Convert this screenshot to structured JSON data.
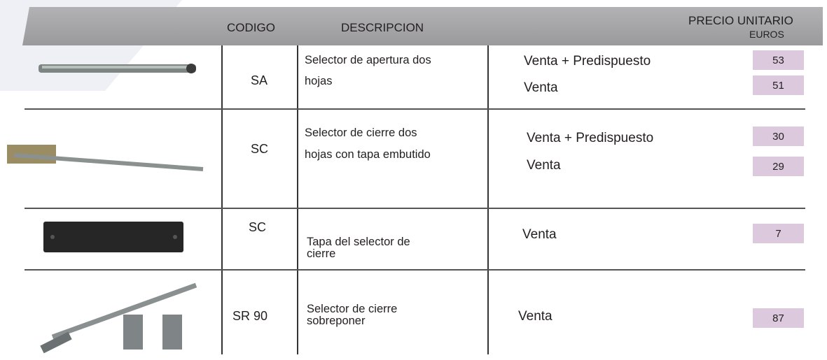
{
  "header": {
    "codigo": "CODIGO",
    "descripcion": "DESCRIPCION",
    "precio": "PRECIO UNITARIO",
    "unidad": "EUROS"
  },
  "rows": [
    {
      "codigo": "SA",
      "descripcion": [
        "Selector de apertura dos",
        "hojas"
      ],
      "options": [
        {
          "label": "Venta + Predispuesto",
          "price": 53
        },
        {
          "label": "Venta",
          "price": 51
        }
      ]
    },
    {
      "codigo": "SC",
      "descripcion": [
        "Selector de cierre dos",
        "hojas con tapa embutido"
      ],
      "options": [
        {
          "label": "Venta + Predispuesto",
          "price": 30
        },
        {
          "label": "Venta",
          "price": 29
        }
      ]
    },
    {
      "codigo": "SC",
      "descripcion": [
        "Tapa del selector de",
        "cierre"
      ],
      "options": [
        {
          "label": "Venta",
          "price": 7
        }
      ]
    },
    {
      "codigo": "SR 90",
      "descripcion": [
        "Selector de cierre",
        "sobreponer"
      ],
      "options": [
        {
          "label": "Venta",
          "price": 87
        }
      ]
    }
  ]
}
